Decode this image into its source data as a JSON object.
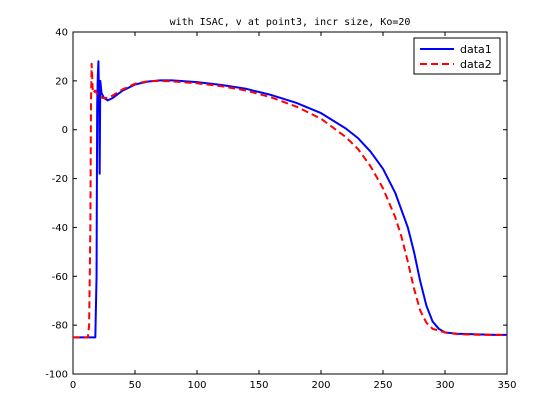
{
  "chart_data": {
    "type": "line",
    "title": "with ISAC, v at point3, incr size, Ko=20",
    "xlabel": "",
    "ylabel": "",
    "xlim": [
      0,
      350
    ],
    "ylim": [
      -100,
      40
    ],
    "xticks": [
      0,
      50,
      100,
      150,
      200,
      250,
      300,
      350
    ],
    "yticks": [
      -100,
      -80,
      -60,
      -40,
      -20,
      0,
      20,
      40
    ],
    "grid": false,
    "legend_position": "top-right",
    "series": [
      {
        "name": "data1",
        "color": "#0000ff",
        "style": "solid",
        "points": [
          [
            0,
            -85
          ],
          [
            18,
            -85
          ],
          [
            19,
            -60
          ],
          [
            19.5,
            10
          ],
          [
            20,
            22
          ],
          [
            20.5,
            28
          ],
          [
            21,
            14
          ],
          [
            21.5,
            -18
          ],
          [
            22,
            20
          ],
          [
            23,
            15
          ],
          [
            25,
            13
          ],
          [
            28,
            12
          ],
          [
            32,
            13
          ],
          [
            40,
            16
          ],
          [
            50,
            18.5
          ],
          [
            60,
            19.7
          ],
          [
            70,
            20.2
          ],
          [
            80,
            20.2
          ],
          [
            100,
            19.5
          ],
          [
            120,
            18.3
          ],
          [
            140,
            16.7
          ],
          [
            160,
            14.2
          ],
          [
            180,
            11
          ],
          [
            200,
            6.8
          ],
          [
            220,
            0.5
          ],
          [
            230,
            -3.5
          ],
          [
            240,
            -9
          ],
          [
            250,
            -16
          ],
          [
            260,
            -26
          ],
          [
            270,
            -40
          ],
          [
            275,
            -50
          ],
          [
            280,
            -62
          ],
          [
            285,
            -72
          ],
          [
            290,
            -78.5
          ],
          [
            295,
            -81.5
          ],
          [
            300,
            -83
          ],
          [
            310,
            -83.5
          ],
          [
            320,
            -83.7
          ],
          [
            340,
            -84
          ],
          [
            350,
            -84
          ]
        ]
      },
      {
        "name": "data2",
        "color": "#ff0000",
        "style": "dashed",
        "points": [
          [
            0,
            -85
          ],
          [
            12,
            -85
          ],
          [
            13,
            -80
          ],
          [
            14,
            -40
          ],
          [
            14.5,
            10
          ],
          [
            15,
            27
          ],
          [
            15.5,
            22
          ],
          [
            16,
            15
          ],
          [
            18,
            16
          ],
          [
            20,
            14
          ],
          [
            24,
            13
          ],
          [
            28,
            13
          ],
          [
            32,
            14
          ],
          [
            40,
            16.5
          ],
          [
            50,
            18.8
          ],
          [
            60,
            19.8
          ],
          [
            70,
            20
          ],
          [
            80,
            19.8
          ],
          [
            100,
            19
          ],
          [
            120,
            17.8
          ],
          [
            140,
            16
          ],
          [
            160,
            13.2
          ],
          [
            180,
            9.5
          ],
          [
            200,
            4.5
          ],
          [
            220,
            -3
          ],
          [
            230,
            -8
          ],
          [
            240,
            -15
          ],
          [
            250,
            -24
          ],
          [
            260,
            -36
          ],
          [
            265,
            -44
          ],
          [
            270,
            -54
          ],
          [
            275,
            -65
          ],
          [
            280,
            -74
          ],
          [
            285,
            -79
          ],
          [
            290,
            -81.5
          ],
          [
            300,
            -83
          ],
          [
            310,
            -83.7
          ],
          [
            330,
            -84
          ],
          [
            350,
            -84
          ]
        ]
      }
    ]
  }
}
